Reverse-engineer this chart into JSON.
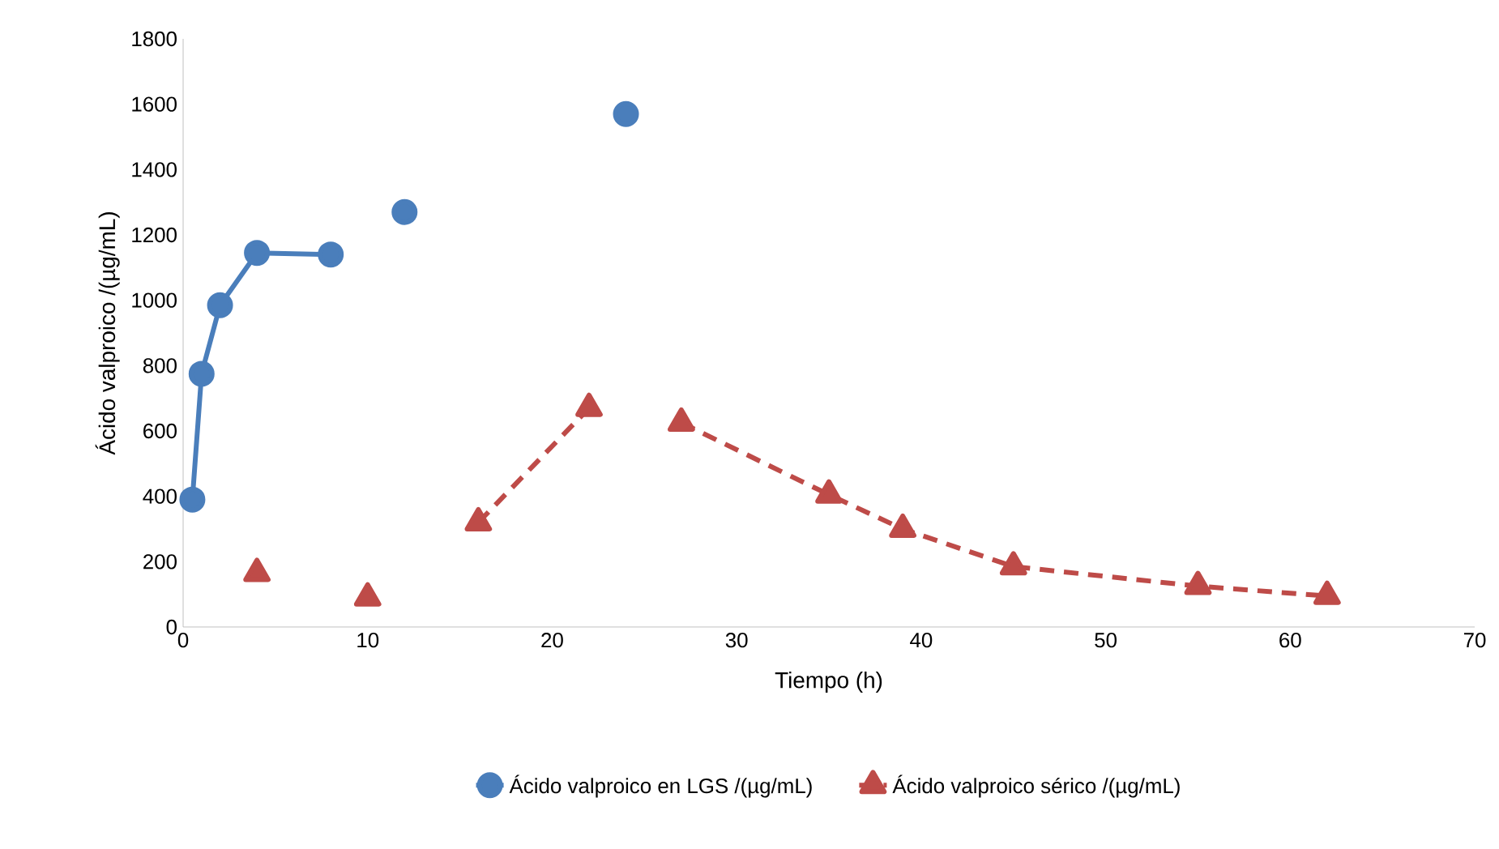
{
  "chart_data": {
    "type": "line",
    "xlabel": "Tiempo (h)",
    "ylabel": "Ácido valproico /(µg/mL)",
    "xlim": [
      0,
      70
    ],
    "xticks": [
      0,
      10,
      20,
      30,
      40,
      50,
      60,
      70
    ],
    "ylim": [
      0,
      1800
    ],
    "yticks": [
      0,
      200,
      400,
      600,
      800,
      1000,
      1200,
      1400,
      1600,
      1800
    ],
    "grid": false,
    "legend": "bottom",
    "series": [
      {
        "name": "Ácido valproico en LGS /(µg/mL)",
        "color": "#4a7ebb",
        "marker": "circle",
        "line_style": "solid",
        "x": [
          0.5,
          1,
          2,
          4,
          8,
          10,
          12,
          18,
          24
        ],
        "values": [
          390,
          775,
          985,
          1145,
          1140,
          null,
          1270,
          null,
          1570
        ]
      },
      {
        "name": "Ácido valproico sérico /(µg/mL)",
        "color": "#be4b48",
        "marker": "triangle",
        "line_style": "dashed",
        "x": [
          4,
          7,
          10,
          13,
          16,
          22,
          24.5,
          27,
          35,
          39,
          45,
          55,
          62
        ],
        "values": [
          165,
          null,
          90,
          null,
          320,
          670,
          null,
          625,
          405,
          300,
          185,
          125,
          95
        ]
      }
    ]
  }
}
